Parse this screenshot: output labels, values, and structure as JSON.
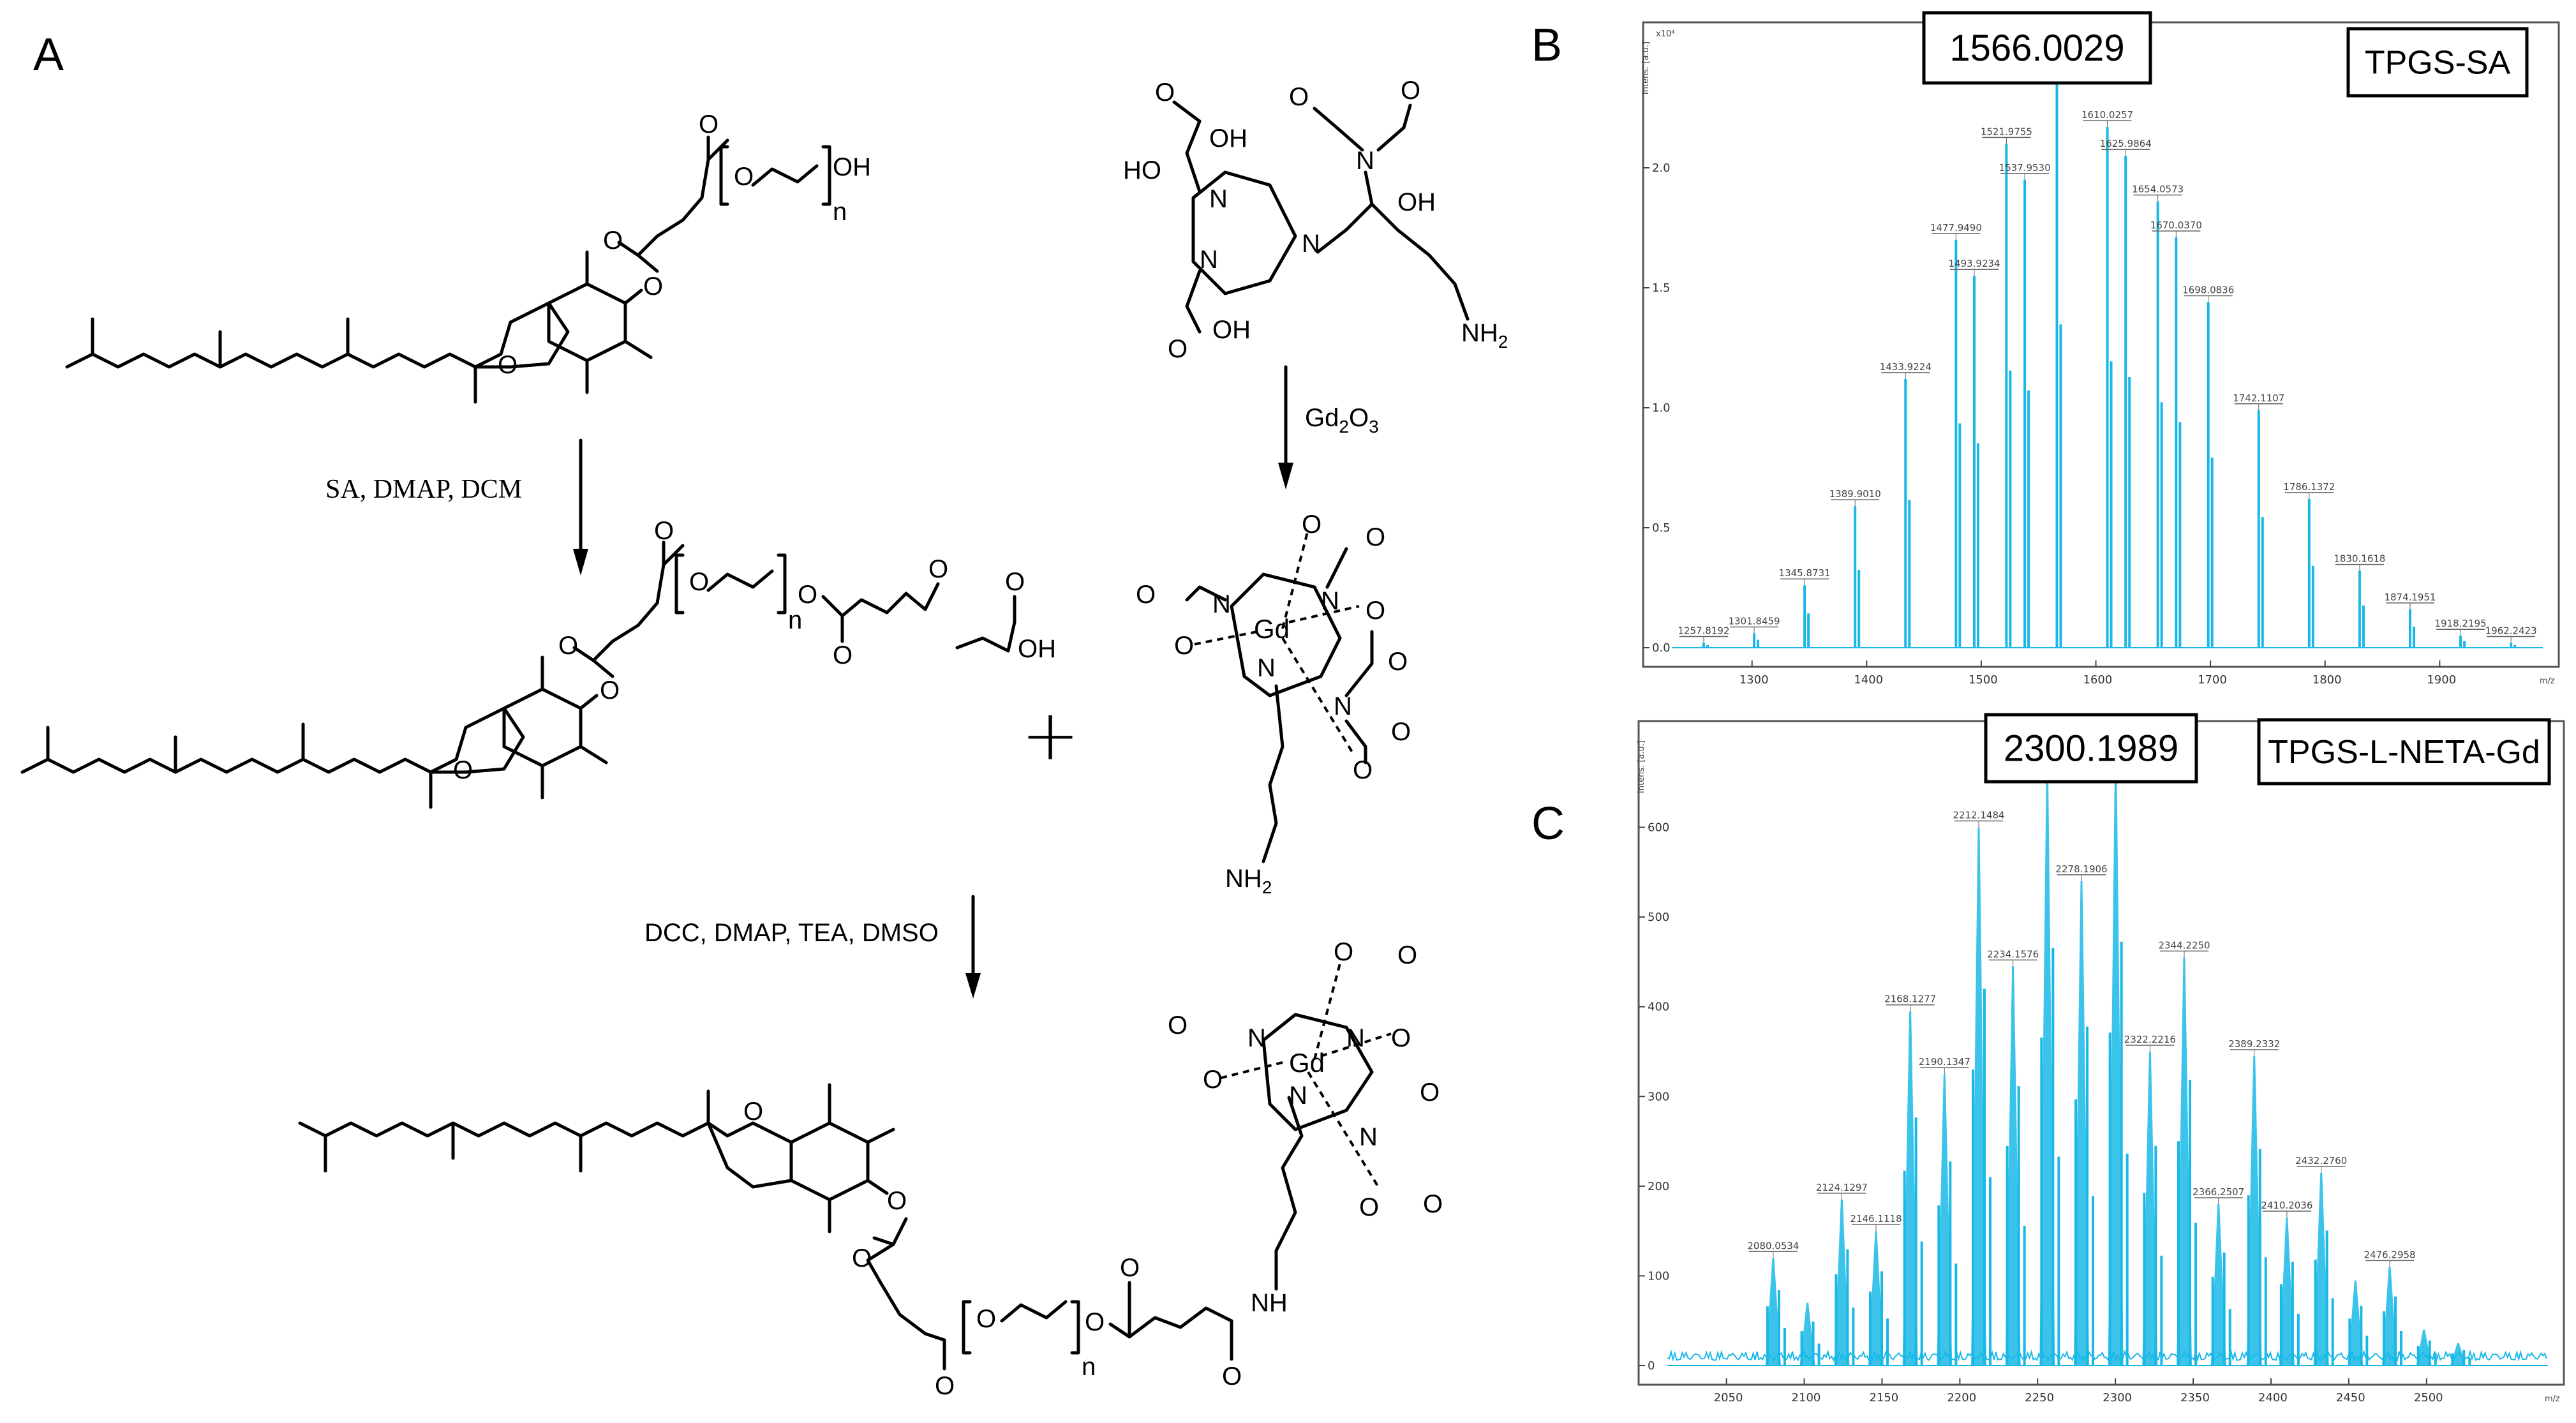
{
  "panels": {
    "a": "A",
    "b": "B",
    "c": "C"
  },
  "scheme": {
    "step1_conditions": "SA, DMAP, DCM",
    "step2_conditions": "DCC, DMAP, TEA, DMSO",
    "step3_reagent": "Gd",
    "step3_reagent_sub": "2",
    "step3_reagent_o": "O",
    "step3_reagent_o_sub": "3",
    "plus": "+",
    "atoms": {
      "O": "O",
      "OH": "OH",
      "N": "N",
      "NH": "NH",
      "NH2": "NH",
      "NH2_sub": "2",
      "Gd": "Gd",
      "n": "n",
      "HO": "HO"
    }
  },
  "chart_data": [
    {
      "type": "bar",
      "panel": "B",
      "title": "TPGS-SA",
      "highlight_label": "1566.0029",
      "ylabel": "Intens. [a.u.]",
      "y_exponent": "x10⁴",
      "xlabel": "m/z",
      "xlim": [
        1230,
        1990
      ],
      "ylim": [
        0,
        2.5
      ],
      "xticks": [
        "1300",
        "1400",
        "1500",
        "1600",
        "1700",
        "1800",
        "1900"
      ],
      "yticks": [
        "0.0",
        "0.5",
        "1.0",
        "1.5",
        "2.0"
      ],
      "peaks": [
        {
          "mz": 1257.8192,
          "intensity": 0.02,
          "label": "1257.8192"
        },
        {
          "mz": 1301.8459,
          "intensity": 0.06,
          "label": "1301.8459"
        },
        {
          "mz": 1345.8731,
          "intensity": 0.26,
          "label": "1345.8731"
        },
        {
          "mz": 1389.901,
          "intensity": 0.59,
          "label": "1389.9010"
        },
        {
          "mz": 1433.9224,
          "intensity": 1.12,
          "label": "1433.9224"
        },
        {
          "mz": 1477.949,
          "intensity": 1.7,
          "label": "1477.9490"
        },
        {
          "mz": 1493.9234,
          "intensity": 1.55,
          "label": "1493.9234"
        },
        {
          "mz": 1521.9755,
          "intensity": 2.1,
          "label": "1521.9755"
        },
        {
          "mz": 1537.953,
          "intensity": 1.95,
          "label": "1537.9530"
        },
        {
          "mz": 1566.0029,
          "intensity": 2.45,
          "label": "1566.0029"
        },
        {
          "mz": 1610.0257,
          "intensity": 2.17,
          "label": "1610.0257"
        },
        {
          "mz": 1625.9864,
          "intensity": 2.05,
          "label": "1625.9864"
        },
        {
          "mz": 1654.0573,
          "intensity": 1.86,
          "label": "1654.0573"
        },
        {
          "mz": 1670.037,
          "intensity": 1.71,
          "label": "1670.0370"
        },
        {
          "mz": 1698.0836,
          "intensity": 1.44,
          "label": "1698.0836"
        },
        {
          "mz": 1742.1107,
          "intensity": 0.99,
          "label": "1742.1107"
        },
        {
          "mz": 1786.1372,
          "intensity": 0.62,
          "label": "1786.1372"
        },
        {
          "mz": 1830.1618,
          "intensity": 0.32,
          "label": "1830.1618"
        },
        {
          "mz": 1874.1951,
          "intensity": 0.16,
          "label": "1874.1951"
        },
        {
          "mz": 1918.2195,
          "intensity": 0.05,
          "label": "1918.2195"
        },
        {
          "mz": 1962.2423,
          "intensity": 0.02,
          "label": "1962.2423"
        }
      ]
    },
    {
      "type": "bar",
      "panel": "C",
      "title": "TPGS-L-NETA-Gd",
      "highlight_label": "2300.1989",
      "ylabel": "Intens. [a.u.]",
      "xlabel": "m/z",
      "xlim": [
        2012,
        2578
      ],
      "ylim": [
        0,
        690
      ],
      "xticks": [
        "2050",
        "2100",
        "2150",
        "2200",
        "2250",
        "2300",
        "2350",
        "2400",
        "2450",
        "2500"
      ],
      "yticks": [
        "0",
        "100",
        "200",
        "300",
        "400",
        "500",
        "600"
      ],
      "peaks": [
        {
          "mz": 2080.0534,
          "intensity": 120,
          "label": "2080.0534"
        },
        {
          "mz": 2102.05,
          "intensity": 70,
          "label": ""
        },
        {
          "mz": 2124.1297,
          "intensity": 185,
          "label": "2124.1297"
        },
        {
          "mz": 2146.1118,
          "intensity": 150,
          "label": "2146.1118"
        },
        {
          "mz": 2168.1277,
          "intensity": 395,
          "label": "2168.1277"
        },
        {
          "mz": 2190.1347,
          "intensity": 325,
          "label": "2190.1347"
        },
        {
          "mz": 2212.1484,
          "intensity": 600,
          "label": "2212.1484"
        },
        {
          "mz": 2234.1576,
          "intensity": 445,
          "label": "2234.1576"
        },
        {
          "mz": 2256.18,
          "intensity": 665,
          "label": ""
        },
        {
          "mz": 2278.1906,
          "intensity": 540,
          "label": "2278.1906"
        },
        {
          "mz": 2300.1989,
          "intensity": 675,
          "label": "2300.1989"
        },
        {
          "mz": 2322.2216,
          "intensity": 350,
          "label": "2322.2216"
        },
        {
          "mz": 2344.225,
          "intensity": 455,
          "label": "2344.2250"
        },
        {
          "mz": 2366.2507,
          "intensity": 180,
          "label": "2366.2507"
        },
        {
          "mz": 2389.2332,
          "intensity": 345,
          "label": "2389.2332"
        },
        {
          "mz": 2410.2036,
          "intensity": 165,
          "label": "2410.2036"
        },
        {
          "mz": 2432.276,
          "intensity": 215,
          "label": "2432.2760"
        },
        {
          "mz": 2454.28,
          "intensity": 95,
          "label": ""
        },
        {
          "mz": 2476.2958,
          "intensity": 110,
          "label": "2476.2958"
        },
        {
          "mz": 2498.3,
          "intensity": 40,
          "label": ""
        },
        {
          "mz": 2520.3,
          "intensity": 25,
          "label": ""
        }
      ]
    }
  ]
}
